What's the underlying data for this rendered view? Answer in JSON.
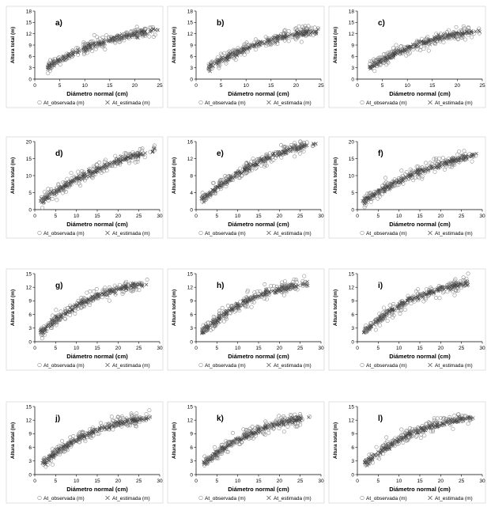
{
  "figure": {
    "xlabel": "Diámetro normal (cm)",
    "ylabel": "Altura total (m)",
    "legend_observed": "At_observada (m)",
    "legend_estimated": "At_estimada (m)",
    "colors": {
      "observed": "#888888",
      "estimated": "#444444",
      "axis": "#000000",
      "panel_border": "#d9d9d9"
    }
  },
  "chart_data": [
    {
      "type": "scatter",
      "label": "a)",
      "xlim": [
        0,
        25
      ],
      "ylim": [
        0,
        18
      ],
      "xticks": [
        0,
        5,
        10,
        15,
        20,
        25
      ],
      "yticks": [
        0,
        3,
        6,
        9,
        12,
        15,
        18
      ],
      "curve": {
        "a": 13.6,
        "k": 0.085,
        "c": 1.25,
        "xmin": 2.5,
        "xmax": 24.5
      },
      "series": [
        {
          "name": "At_observada (m)"
        },
        {
          "name": "At_estimada (m)"
        }
      ]
    },
    {
      "type": "scatter",
      "label": "b)",
      "xlim": [
        0,
        25
      ],
      "ylim": [
        0,
        18
      ],
      "xticks": [
        0,
        5,
        10,
        15,
        20,
        25
      ],
      "yticks": [
        0,
        3,
        6,
        9,
        12,
        15,
        18
      ],
      "curve": {
        "a": 13.6,
        "k": 0.085,
        "c": 1.25,
        "xmin": 2.5,
        "xmax": 24.5
      },
      "series": [
        {
          "name": "At_observada (m)"
        },
        {
          "name": "At_estimada (m)"
        }
      ]
    },
    {
      "type": "scatter",
      "label": "c)",
      "xlim": [
        0,
        25
      ],
      "ylim": [
        0,
        18
      ],
      "xticks": [
        0,
        5,
        10,
        15,
        20,
        25
      ],
      "yticks": [
        0,
        3,
        6,
        9,
        12,
        15,
        18
      ],
      "curve": {
        "a": 13.6,
        "k": 0.085,
        "c": 1.25,
        "xmin": 2.5,
        "xmax": 24.5
      },
      "series": [
        {
          "name": "At_observada (m)"
        },
        {
          "name": "At_estimada (m)"
        }
      ]
    },
    {
      "type": "scatter",
      "label": "d)",
      "xlim": [
        0,
        30
      ],
      "ylim": [
        0,
        20
      ],
      "xticks": [
        0,
        5,
        10,
        15,
        20,
        25,
        30
      ],
      "yticks": [
        0,
        5,
        10,
        15,
        20
      ],
      "curve": {
        "a": 24.0,
        "k": 0.04,
        "c": 1.05,
        "xmin": 1.5,
        "xmax": 29
      },
      "series": [
        {
          "name": "At_observada (m)"
        },
        {
          "name": "At_estimada (m)"
        }
      ]
    },
    {
      "type": "scatter",
      "label": "e)",
      "xlim": [
        0,
        30
      ],
      "ylim": [
        0,
        16
      ],
      "xticks": [
        0,
        5,
        10,
        15,
        20,
        25,
        30
      ],
      "yticks": [
        0,
        4,
        8,
        12,
        16
      ],
      "curve": {
        "a": 18.0,
        "k": 0.06,
        "c": 1.15,
        "xmin": 1.5,
        "xmax": 29
      },
      "series": [
        {
          "name": "At_observada (m)"
        },
        {
          "name": "At_estimada (m)"
        }
      ]
    },
    {
      "type": "scatter",
      "label": "f)",
      "xlim": [
        0,
        30
      ],
      "ylim": [
        0,
        20
      ],
      "xticks": [
        0,
        5,
        10,
        15,
        20,
        25,
        30
      ],
      "yticks": [
        0,
        5,
        10,
        15,
        20
      ],
      "curve": {
        "a": 20.0,
        "k": 0.05,
        "c": 1.1,
        "xmin": 1.5,
        "xmax": 29
      },
      "series": [
        {
          "name": "At_observada (m)"
        },
        {
          "name": "At_estimada (m)"
        }
      ]
    },
    {
      "type": "scatter",
      "label": "g)",
      "xlim": [
        0,
        30
      ],
      "ylim": [
        0,
        15
      ],
      "xticks": [
        0,
        5,
        10,
        15,
        20,
        25,
        30
      ],
      "yticks": [
        0,
        3,
        6,
        9,
        12,
        15
      ],
      "curve": {
        "a": 13.0,
        "k": 0.09,
        "c": 1.3,
        "xmin": 1.5,
        "xmax": 27
      },
      "series": [
        {
          "name": "At_observada (m)"
        },
        {
          "name": "At_estimada (m)"
        }
      ]
    },
    {
      "type": "scatter",
      "label": "h)",
      "xlim": [
        0,
        30
      ],
      "ylim": [
        0,
        15
      ],
      "xticks": [
        0,
        5,
        10,
        15,
        20,
        25,
        30
      ],
      "yticks": [
        0,
        3,
        6,
        9,
        12,
        15
      ],
      "curve": {
        "a": 13.0,
        "k": 0.09,
        "c": 1.3,
        "xmin": 1.5,
        "xmax": 27
      },
      "series": [
        {
          "name": "At_observada (m)"
        },
        {
          "name": "At_estimada (m)"
        }
      ]
    },
    {
      "type": "scatter",
      "label": "i)",
      "xlim": [
        0,
        30
      ],
      "ylim": [
        0,
        15
      ],
      "xticks": [
        0,
        5,
        10,
        15,
        20,
        25,
        30
      ],
      "yticks": [
        0,
        3,
        6,
        9,
        12,
        15
      ],
      "curve": {
        "a": 13.0,
        "k": 0.09,
        "c": 1.3,
        "xmin": 1.5,
        "xmax": 27
      },
      "series": [
        {
          "name": "At_observada (m)"
        },
        {
          "name": "At_estimada (m)"
        }
      ]
    },
    {
      "type": "scatter",
      "label": "j)",
      "xlim": [
        0,
        30
      ],
      "ylim": [
        0,
        15
      ],
      "xticks": [
        0,
        5,
        10,
        15,
        20,
        25,
        30
      ],
      "yticks": [
        0,
        3,
        6,
        9,
        12,
        15
      ],
      "curve": {
        "a": 12.8,
        "k": 0.085,
        "c": 1.25,
        "xmin": 2,
        "xmax": 28
      },
      "series": [
        {
          "name": "At_observada (m)"
        },
        {
          "name": "At_estimada (m)"
        }
      ]
    },
    {
      "type": "scatter",
      "label": "k)",
      "xlim": [
        0,
        30
      ],
      "ylim": [
        0,
        15
      ],
      "xticks": [
        0,
        5,
        10,
        15,
        20,
        25,
        30
      ],
      "yticks": [
        0,
        3,
        6,
        9,
        12,
        15
      ],
      "curve": {
        "a": 12.8,
        "k": 0.085,
        "c": 1.25,
        "xmin": 2,
        "xmax": 28
      },
      "series": [
        {
          "name": "At_observada (m)"
        },
        {
          "name": "At_estimada (m)"
        }
      ]
    },
    {
      "type": "scatter",
      "label": "l)",
      "xlim": [
        0,
        30
      ],
      "ylim": [
        0,
        15
      ],
      "xticks": [
        0,
        5,
        10,
        15,
        20,
        25,
        30
      ],
      "yticks": [
        0,
        3,
        6,
        9,
        12,
        15
      ],
      "curve": {
        "a": 12.8,
        "k": 0.085,
        "c": 1.25,
        "xmin": 2,
        "xmax": 28
      },
      "series": [
        {
          "name": "At_observada (m)"
        },
        {
          "name": "At_estimada (m)"
        }
      ]
    }
  ]
}
